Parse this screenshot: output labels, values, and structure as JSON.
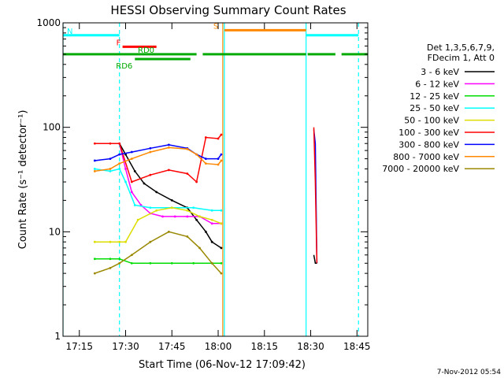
{
  "chart_data": {
    "type": "line",
    "title": "HESSI Observing Summary Count Rates",
    "xlabel": "Start Time (06-Nov-12 17:09:42)",
    "ylabel": "Count Rate (s⁻¹ detector⁻¹)",
    "yscale": "log",
    "xlim": [
      "17:09:42",
      "18:48:30"
    ],
    "ylim": [
      1,
      1000
    ],
    "xticks": [
      "17:15",
      "17:30",
      "17:45",
      "18:00",
      "18:15",
      "18:30",
      "18:45"
    ],
    "yticks": [
      "1",
      "10",
      "100",
      "1000"
    ],
    "legend_title": [
      "Det 1,3,5,6,7,9,",
      "FDecim 1, Att 0"
    ],
    "legend_placement": "right",
    "footer": "7-Nov-2012 05:54",
    "series": [
      {
        "name": "3 - 6 keV",
        "color": "#000000",
        "x": [
          "17:28:00",
          "17:30:00",
          "17:33:00",
          "17:36:00",
          "17:40:00",
          "17:45:00",
          "17:50:00",
          "17:53:00",
          "17:56:00",
          "17:58:00",
          "18:01:00"
        ],
        "y": [
          70,
          55,
          38,
          29,
          24,
          20,
          17,
          13,
          10,
          8,
          7
        ]
      },
      {
        "name": "6 - 12 keV",
        "color": "#ff00ff",
        "x": [
          "17:28:00",
          "17:30:00",
          "17:32:00",
          "17:35:00",
          "17:38:00",
          "17:42:00",
          "17:46:00",
          "17:50:00",
          "17:54:00",
          "17:58:00",
          "18:01:00"
        ],
        "y": [
          70,
          40,
          24,
          18,
          15,
          14,
          14,
          14,
          14,
          12,
          12
        ]
      },
      {
        "name": "12 - 25 keV",
        "color": "#00dd00",
        "x": [
          "17:20:00",
          "17:25:00",
          "17:28:00",
          "17:32:00",
          "17:38:00",
          "17:45:00",
          "17:52:00",
          "17:58:00",
          "18:01:00"
        ],
        "y": [
          5.5,
          5.5,
          5.5,
          5,
          5,
          5,
          5,
          5,
          5
        ]
      },
      {
        "name": "25 - 50 keV",
        "color": "#00ffff",
        "x": [
          "17:20:00",
          "17:25:00",
          "17:28:00",
          "17:30:00",
          "17:33:00",
          "17:38:00",
          "17:45:00",
          "17:52:00",
          "17:58:00",
          "18:01:00"
        ],
        "y": [
          40,
          38,
          40,
          30,
          18,
          17,
          17,
          17,
          16,
          16
        ]
      },
      {
        "name": "50 - 100 keV",
        "color": "#dddd00",
        "x": [
          "17:20:00",
          "17:25:00",
          "17:28:00",
          "17:30:00",
          "17:34:00",
          "17:40:00",
          "17:45:00",
          "17:50:00",
          "17:54:00",
          "17:58:00",
          "18:01:00"
        ],
        "y": [
          8,
          8,
          8,
          8,
          13,
          16,
          17,
          16,
          14,
          13,
          12
        ]
      },
      {
        "name": "100 - 300 keV",
        "color": "#ff0000",
        "x": [
          "17:20:00",
          "17:25:00",
          "17:28:00",
          "17:32:00",
          "17:38:00",
          "17:44:00",
          "17:50:00",
          "17:53:00",
          "17:56:00",
          "18:00:00",
          "18:01:00"
        ],
        "y": [
          70,
          70,
          70,
          30,
          35,
          39,
          36,
          30,
          80,
          78,
          85
        ]
      },
      {
        "name": "300 - 800 keV",
        "color": "#0000ff",
        "x": [
          "17:20:00",
          "17:25:00",
          "17:28:00",
          "17:32:00",
          "17:38:00",
          "17:44:00",
          "17:50:00",
          "17:53:00",
          "17:56:00",
          "18:00:00",
          "18:01:00"
        ],
        "y": [
          48,
          50,
          55,
          58,
          63,
          68,
          63,
          55,
          50,
          50,
          55
        ]
      },
      {
        "name": "800 - 7000 keV",
        "color": "#ff8800",
        "x": [
          "17:20:00",
          "17:25:00",
          "17:28:00",
          "17:32:00",
          "17:38:00",
          "17:44:00",
          "17:50:00",
          "17:53:00",
          "17:56:00",
          "18:00:00",
          "18:01:00"
        ],
        "y": [
          38,
          40,
          45,
          50,
          58,
          64,
          62,
          55,
          45,
          44,
          48
        ]
      },
      {
        "name": "7000 - 20000 keV",
        "color": "#998800",
        "x": [
          "17:20:00",
          "17:25:00",
          "17:28:00",
          "17:32:00",
          "17:38:00",
          "17:44:00",
          "17:50:00",
          "17:54:00",
          "17:58:00",
          "18:01:00"
        ],
        "y": [
          4,
          4.5,
          5,
          6,
          8,
          10,
          9,
          7,
          5,
          4
        ]
      }
    ],
    "spikes": [
      {
        "color": "#0000ff",
        "x": [
          "18:31:00",
          "18:31:30",
          "18:32:00"
        ],
        "y": [
          95,
          70,
          5
        ]
      },
      {
        "color": "#ff0000",
        "x": [
          "18:31:00",
          "18:31:30",
          "18:32:00"
        ],
        "y": [
          100,
          30,
          5
        ]
      },
      {
        "color": "#000000",
        "x": [
          "18:31:00",
          "18:31:30",
          "18:32:00"
        ],
        "y": [
          6,
          5,
          5
        ]
      }
    ],
    "vertical_lines": [
      {
        "x": "17:09:42",
        "color": "#00ffff",
        "style": "solid"
      },
      {
        "x": "17:28:00",
        "color": "#00ffff",
        "style": "dashed"
      },
      {
        "x": "18:02:00",
        "color": "#00ffff",
        "style": "solid"
      },
      {
        "x": "18:28:30",
        "color": "#00ffff",
        "style": "solid"
      },
      {
        "x": "18:45:30",
        "color": "#00ffff",
        "style": "dashed"
      },
      {
        "x": "18:01:30",
        "color": "#ff8800",
        "style": "solid"
      }
    ],
    "flag_bars": [
      {
        "label": "N",
        "color": "#00ffff",
        "level": 760,
        "segments": [
          [
            "17:09:42",
            "17:28:00"
          ],
          [
            "18:28:30",
            "18:45:30"
          ]
        ]
      },
      {
        "label": "S",
        "color": "#ff8800",
        "level": 850,
        "segments": [
          [
            "18:02:00",
            "18:28:30"
          ]
        ]
      },
      {
        "label": "F",
        "color": "#ff0000",
        "level": 590,
        "segments": [
          [
            "17:29:00",
            "17:40:00"
          ]
        ]
      },
      {
        "label": "RD0",
        "color": "#00aa00",
        "level": 500,
        "segments": [
          [
            "17:09:42",
            "17:53:00"
          ],
          [
            "17:55:00",
            "18:28:30"
          ],
          [
            "18:29:00",
            "18:38:00"
          ],
          [
            "18:40:00",
            "18:48:30"
          ]
        ]
      },
      {
        "label": "RD6",
        "color": "#00aa00",
        "level": 450,
        "segments": [
          [
            "17:33:00",
            "17:51:00"
          ]
        ]
      }
    ]
  }
}
